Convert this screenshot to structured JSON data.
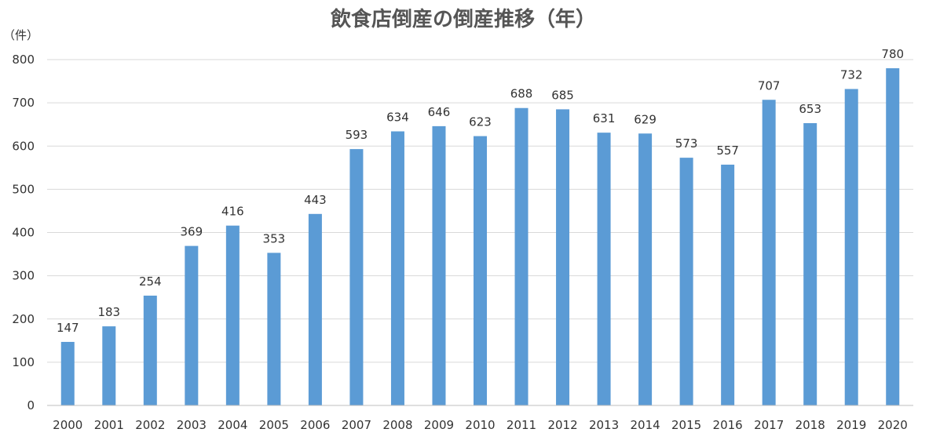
{
  "chart_data": {
    "type": "bar",
    "title": "飲食店倒産の倒産推移（年）",
    "ylabel": "（件）",
    "xlabel": "",
    "ylim": [
      0,
      800
    ],
    "yticks": [
      0,
      100,
      200,
      300,
      400,
      500,
      600,
      700,
      800
    ],
    "grid": true,
    "legend": "none",
    "bar_color": "#5b9bd5",
    "categories": [
      "2000",
      "2001",
      "2002",
      "2003",
      "2004",
      "2005",
      "2006",
      "2007",
      "2008",
      "2009",
      "2010",
      "2011",
      "2012",
      "2013",
      "2014",
      "2015",
      "2016",
      "2017",
      "2018",
      "2019",
      "2020"
    ],
    "values": [
      147,
      183,
      254,
      369,
      416,
      353,
      443,
      593,
      634,
      646,
      623,
      688,
      685,
      631,
      629,
      573,
      557,
      707,
      653,
      732,
      780
    ]
  }
}
